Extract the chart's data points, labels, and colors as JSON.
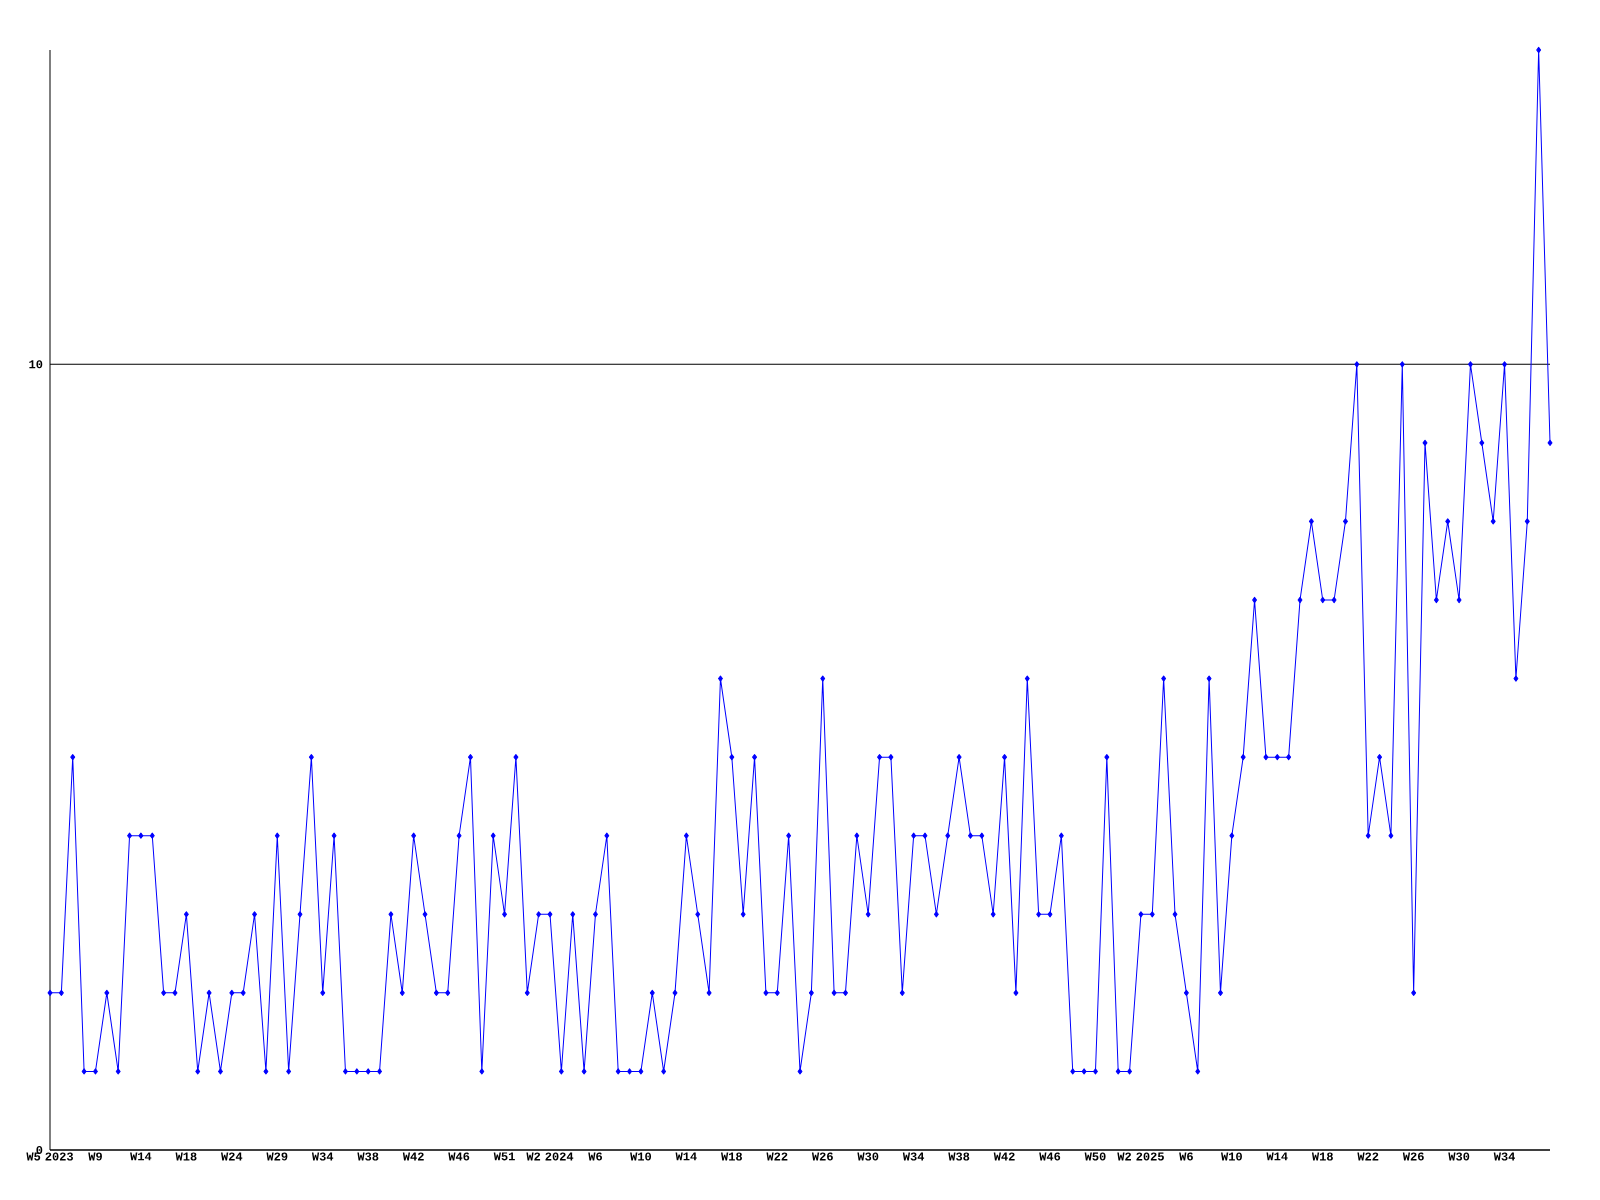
{
  "chart_data": {
    "type": "line",
    "categories": [
      "W5 2023",
      null,
      null,
      null,
      "W9",
      null,
      null,
      null,
      "W14",
      null,
      null,
      null,
      "W18",
      null,
      null,
      null,
      "W24",
      null,
      null,
      null,
      "W29",
      null,
      null,
      null,
      "W34",
      null,
      null,
      null,
      "W38",
      null,
      null,
      null,
      "W42",
      null,
      null,
      null,
      "W46",
      null,
      null,
      null,
      "W51",
      null,
      null,
      null,
      "W2 2024",
      null,
      null,
      null,
      "W6",
      null,
      null,
      null,
      "W10",
      null,
      null,
      null,
      "W14",
      null,
      null,
      null,
      "W18",
      null,
      null,
      null,
      "W22",
      null,
      null,
      null,
      "W26",
      null,
      null,
      null,
      "W30",
      null,
      null,
      null,
      "W34",
      null,
      null,
      null,
      "W38",
      null,
      null,
      null,
      "W42",
      null,
      null,
      null,
      "W46",
      null,
      null,
      null,
      "W50",
      null,
      null,
      null,
      "W2 2025",
      null,
      null,
      null,
      "W6",
      null,
      null,
      null,
      "W10",
      null,
      null,
      null,
      "W14",
      null,
      null,
      null,
      "W18",
      null,
      null,
      null,
      "W22",
      null,
      null,
      null,
      "W26",
      null,
      null,
      null,
      "W30",
      null,
      null,
      null,
      "W34",
      null,
      null,
      null,
      null
    ],
    "values": [
      2,
      2,
      5,
      1,
      1,
      2,
      1,
      4,
      4,
      4,
      2,
      2,
      3,
      1,
      2,
      1,
      2,
      2,
      3,
      1,
      4,
      1,
      3,
      5,
      2,
      4,
      1,
      1,
      1,
      1,
      3,
      2,
      4,
      3,
      2,
      2,
      4,
      5,
      1,
      4,
      3,
      5,
      2,
      3,
      3,
      1,
      3,
      1,
      3,
      4,
      1,
      1,
      1,
      2,
      1,
      2,
      4,
      3,
      2,
      6,
      5,
      3,
      5,
      2,
      2,
      4,
      1,
      2,
      6,
      2,
      2,
      4,
      3,
      5,
      5,
      2,
      4,
      4,
      3,
      4,
      5,
      4,
      4,
      3,
      5,
      2,
      6,
      3,
      3,
      4,
      1,
      1,
      1,
      5,
      1,
      1,
      3,
      3,
      6,
      3,
      2,
      1,
      6,
      2,
      4,
      5,
      7,
      5,
      5,
      5,
      7,
      8,
      7,
      7,
      8,
      10,
      4,
      5,
      4,
      10,
      2,
      9,
      7,
      8,
      7,
      10,
      9,
      8,
      10,
      6,
      8,
      14,
      9
    ],
    "color": "#0000ff",
    "ylim": [
      0,
      14
    ],
    "yticks": [
      0,
      10
    ],
    "grid": "y",
    "marker": "diamond"
  }
}
